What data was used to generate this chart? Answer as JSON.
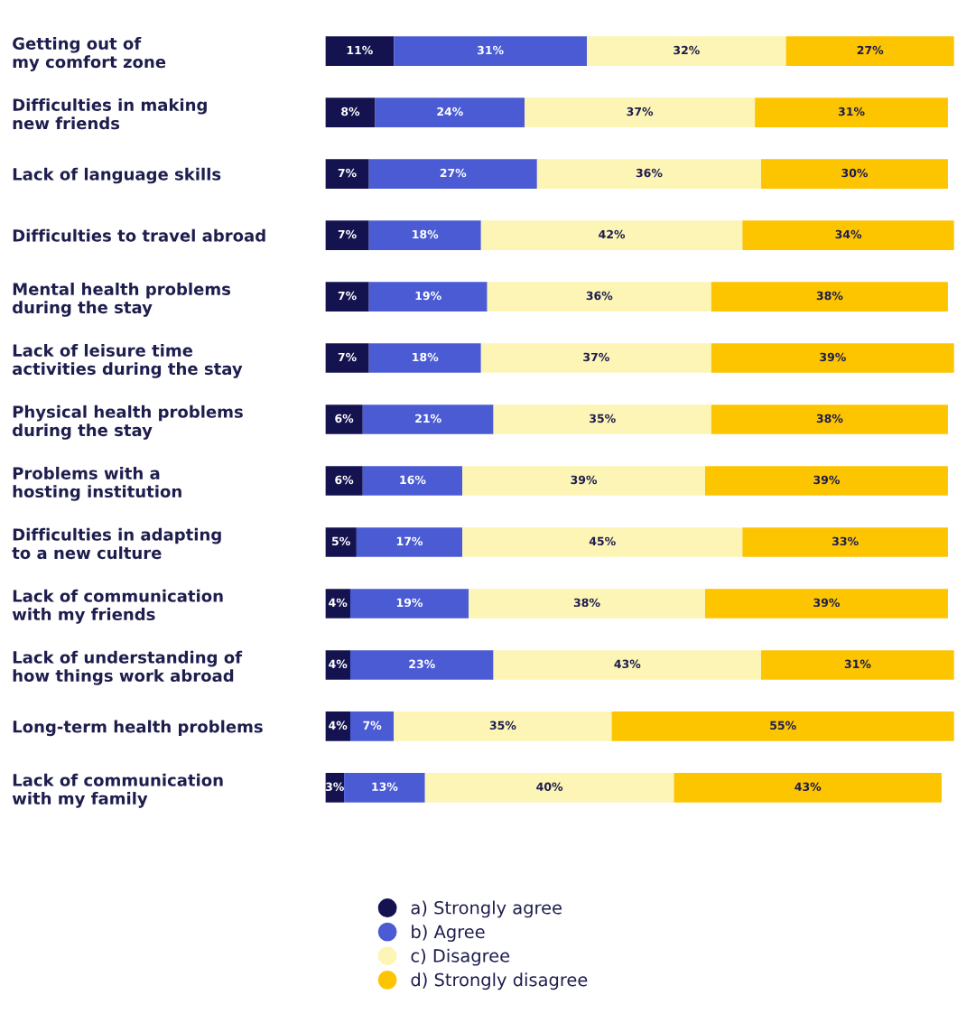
{
  "chart_data": {
    "type": "bar",
    "orientation": "horizontal",
    "stacked": true,
    "legend": "bottom",
    "grid": false,
    "categories": [
      "Getting out of\nmy comfort zone",
      "Difficulties in making\nnew friends",
      "Lack of language skills",
      "Difficulties to travel abroad",
      "Mental health problems\nduring the stay",
      "Lack of leisure time\nactivities during the stay",
      "Physical health problems\nduring the stay",
      "Problems with a\nhosting institution",
      "Difficulties in adapting\nto a new culture",
      "Lack of communication\nwith my friends",
      "Lack of understanding of\nhow things work abroad",
      "Long-term health problems",
      "Lack of communication\nwith my family"
    ],
    "series": [
      {
        "name": "a) Strongly agree",
        "color": "#14134f",
        "values": [
          11,
          8,
          7,
          7,
          7,
          7,
          6,
          6,
          5,
          4,
          4,
          4,
          3
        ],
        "value_labels": [
          "11%",
          "8%",
          "7%",
          "7%",
          "7%",
          "7%",
          "6%",
          "6%",
          "5%",
          "4%",
          "4%",
          "4%",
          "3%"
        ]
      },
      {
        "name": "b) Agree",
        "color": "#4a5bd4",
        "values": [
          31,
          24,
          27,
          18,
          19,
          18,
          21,
          16,
          17,
          19,
          23,
          7,
          13
        ],
        "value_labels": [
          "31%",
          "24%",
          "27%",
          "18%",
          "19%",
          "18%",
          "21%",
          "16%",
          "17%",
          "19%",
          "23%",
          "7%",
          "13%"
        ]
      },
      {
        "name": "c) Disagree",
        "color": "#fdf5b5",
        "values": [
          32,
          37,
          36,
          42,
          36,
          37,
          35,
          39,
          45,
          38,
          43,
          35,
          40
        ],
        "value_labels": [
          "32%",
          "37%",
          "36%",
          "42%",
          "36%",
          "37%",
          "35%",
          "39%",
          "45%",
          "38%",
          "43%",
          "35%",
          "40%"
        ]
      },
      {
        "name": "d) Strongly disagree",
        "color": "#fdc400",
        "values": [
          27,
          31,
          30,
          34,
          38,
          39,
          38,
          39,
          33,
          39,
          31,
          55,
          43
        ],
        "value_labels": [
          "27%",
          "31%",
          "30%",
          "34%",
          "38%",
          "39%",
          "38%",
          "39%",
          "33%",
          "39%",
          "31%",
          "55%",
          "43%"
        ]
      }
    ]
  }
}
